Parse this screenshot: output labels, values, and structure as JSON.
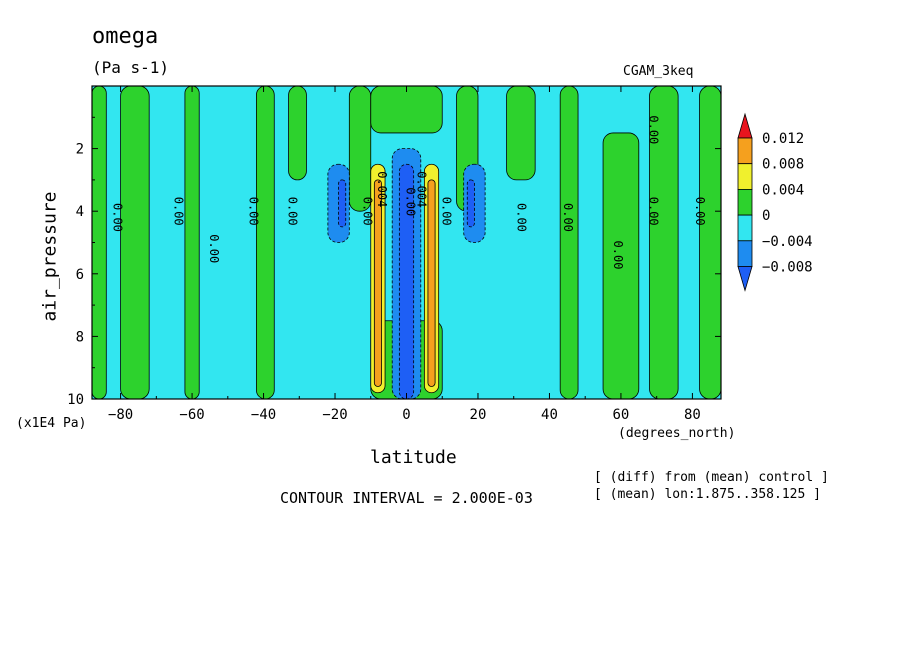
{
  "header": {
    "title": "omega",
    "units": "(Pa s-1)",
    "experiment": "CGAM_3keq"
  },
  "footer": {
    "contour_interval": "CONTOUR INTERVAL = 2.000E-03",
    "note_diff": "[ (diff) from (mean) control ]",
    "note_mean": "[ (mean) lon:1.875..358.125 ]"
  },
  "chart_data": {
    "type": "heatmap",
    "title": "omega",
    "subtitle": "(Pa s-1)",
    "xlabel": "latitude",
    "xunits": "(degrees_north)",
    "ylabel": "air_pressure",
    "yunits": "(x1E4 Pa)",
    "xlim": [
      -88,
      88
    ],
    "ylim": [
      10,
      0
    ],
    "x_ticks": [
      -80,
      -60,
      -40,
      -20,
      0,
      20,
      40,
      60,
      80
    ],
    "y_ticks": [
      2,
      4,
      6,
      8,
      10
    ],
    "contour_levels": [
      -0.008,
      -0.004,
      0,
      0.004,
      0.008,
      0.012
    ],
    "colorbar": {
      "labels": [
        "0.012",
        "0.008",
        "0.004",
        "0",
        "−0.004",
        "−0.008"
      ],
      "colors": [
        "#e8141e",
        "#f5a01e",
        "#f0f02d",
        "#2dd22d",
        "#32e6f0",
        "#1e8cf0",
        "#1e5ff5"
      ]
    },
    "contour_labels": [
      {
        "text": "0.00",
        "x": -81,
        "y": 4.2
      },
      {
        "text": "0.00",
        "x": -64,
        "y": 4.0
      },
      {
        "text": "0.00",
        "x": -54,
        "y": 5.2
      },
      {
        "text": "0.00",
        "x": -43,
        "y": 4.0
      },
      {
        "text": "0.00",
        "x": -32,
        "y": 4.0
      },
      {
        "text": "0.00",
        "x": -11,
        "y": 4.0
      },
      {
        "text": "0.004",
        "x": -7,
        "y": 3.3
      },
      {
        "text": "0.00",
        "x": 1,
        "y": 3.7
      },
      {
        "text": "0.004",
        "x": 4,
        "y": 3.3
      },
      {
        "text": "0.00",
        "x": 11,
        "y": 4.0
      },
      {
        "text": "0.00",
        "x": 32,
        "y": 4.2
      },
      {
        "text": "0.00",
        "x": 45,
        "y": 4.2
      },
      {
        "text": "0.00",
        "x": 59,
        "y": 5.4
      },
      {
        "text": "0.00",
        "x": 69,
        "y": 4.0
      },
      {
        "text": "0.00",
        "x": 82,
        "y": 4.0
      },
      {
        "text": "0.00",
        "x": 69,
        "y": 1.4
      }
    ],
    "fields": [
      {
        "level": "0",
        "bands": [
          [
            -88,
            -84,
            0,
            10
          ],
          [
            -80,
            -72,
            0,
            10
          ],
          [
            -62,
            -58,
            0,
            10
          ],
          [
            -42,
            -37,
            0,
            10
          ],
          [
            -33,
            -28,
            0,
            3
          ],
          [
            -16,
            -10,
            0,
            4
          ],
          [
            -10,
            10,
            0,
            1.5
          ],
          [
            -10,
            10,
            7.5,
            10
          ],
          [
            14,
            20,
            0,
            4
          ],
          [
            28,
            36,
            0,
            3
          ],
          [
            43,
            48,
            0,
            10
          ],
          [
            55,
            65,
            1.5,
            10
          ],
          [
            68,
            76,
            0,
            10
          ],
          [
            82,
            88,
            0,
            10
          ]
        ]
      },
      {
        "level": "0.004",
        "bands": [
          [
            -10,
            -6,
            2.5,
            9.8
          ],
          [
            5,
            9,
            2.5,
            9.8
          ]
        ]
      },
      {
        "level": "0.008",
        "bands": [
          [
            -9,
            -7,
            3.0,
            9.6
          ],
          [
            6,
            8,
            3.0,
            9.6
          ]
        ]
      },
      {
        "level": "-0.004",
        "bands": [
          [
            -4,
            4,
            2.0,
            10
          ],
          [
            -22,
            -16,
            2.5,
            5
          ],
          [
            16,
            22,
            2.5,
            5
          ]
        ]
      },
      {
        "level": "-0.008",
        "bands": [
          [
            -2,
            2,
            2.5,
            10
          ],
          [
            -19,
            -17,
            3,
            4.5
          ],
          [
            17,
            19,
            3,
            4.5
          ]
        ]
      }
    ]
  }
}
